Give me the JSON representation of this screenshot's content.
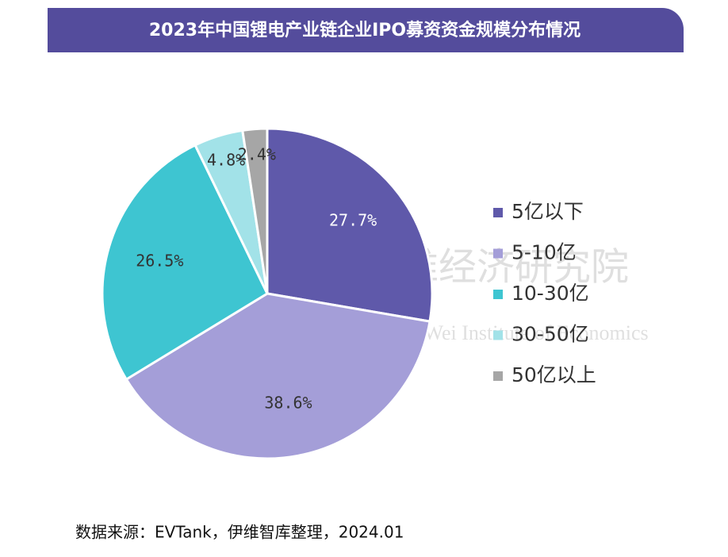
{
  "chart_data": {
    "type": "pie",
    "title": "2023年中国锂电产业链企业IPO募资资金规模分布情况",
    "categories": [
      "5亿以下",
      "5-10亿",
      "10-30亿",
      "30-50亿",
      "50亿以上"
    ],
    "values": [
      27.7,
      38.6,
      26.5,
      4.8,
      2.4
    ],
    "value_labels": [
      "27.7%",
      "38.6%",
      "26.5%",
      "4.8%",
      "2.4%"
    ],
    "colors": [
      "#5f59aa",
      "#a49ed8",
      "#3ec5d1",
      "#a2e2e8",
      "#a6a6a6"
    ],
    "legend": "right",
    "watermark": [
      "伊维经济研究院",
      "China YiWei Institute of Economics"
    ],
    "source": "数据来源：EVTank，伊维智库整理，2024.01"
  }
}
